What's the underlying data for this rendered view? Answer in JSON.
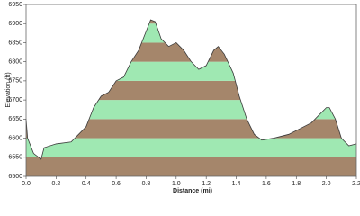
{
  "chart_data": {
    "type": "area",
    "x_label": "Distance  (mi)",
    "y_label": "Elevation (ft)",
    "x": [
      0.0,
      0.01,
      0.05,
      0.1,
      0.12,
      0.2,
      0.3,
      0.4,
      0.45,
      0.5,
      0.55,
      0.6,
      0.65,
      0.7,
      0.75,
      0.8,
      0.83,
      0.86,
      0.9,
      0.95,
      1.0,
      1.05,
      1.1,
      1.15,
      1.2,
      1.25,
      1.28,
      1.32,
      1.38,
      1.42,
      1.47,
      1.52,
      1.57,
      1.65,
      1.75,
      1.85,
      1.9,
      1.95,
      2.0,
      2.02,
      2.06,
      2.1,
      2.15,
      2.2
    ],
    "values": [
      6650,
      6600,
      6560,
      6545,
      6575,
      6585,
      6590,
      6630,
      6680,
      6710,
      6720,
      6750,
      6760,
      6800,
      6830,
      6880,
      6910,
      6905,
      6860,
      6840,
      6850,
      6830,
      6800,
      6780,
      6790,
      6830,
      6840,
      6820,
      6770,
      6710,
      6650,
      6610,
      6595,
      6600,
      6610,
      6630,
      6640,
      6660,
      6680,
      6680,
      6650,
      6600,
      6580,
      6585
    ],
    "band_colors": [
      "#a5866b",
      "#9fe8b2"
    ],
    "line_color": "#3a3a3a",
    "xlim": [
      0,
      2.2
    ],
    "ylim": [
      6500,
      6950
    ],
    "xticks": [
      {
        "value": 0,
        "label": "0.0"
      },
      0.2,
      0.4,
      0.6,
      0.8,
      {
        "value": 1,
        "label": "1.0"
      },
      1.2,
      1.4,
      1.6,
      1.8,
      {
        "value": 2,
        "label": "2.0"
      },
      2.2
    ],
    "yticks": [
      6500,
      6550,
      6600,
      6650,
      6700,
      6750,
      6800,
      6850,
      6900,
      6950
    ]
  }
}
